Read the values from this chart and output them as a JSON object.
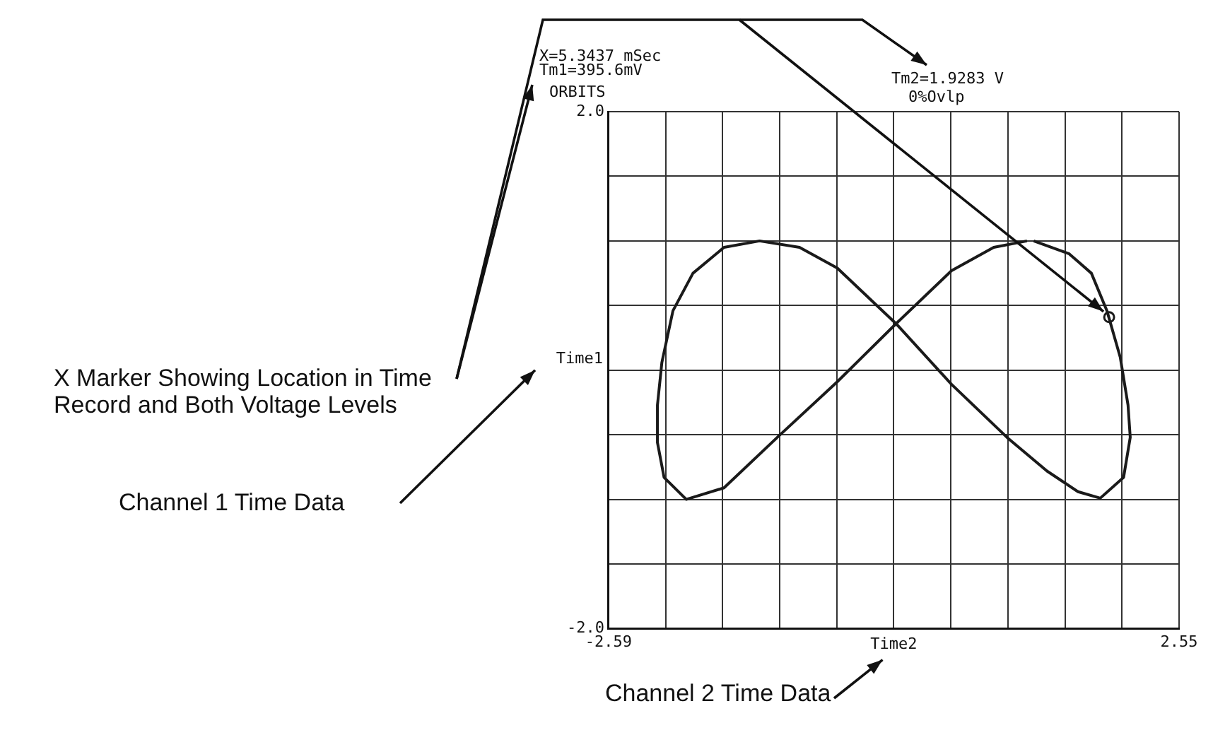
{
  "chart_data": {
    "type": "line",
    "title": "ORBITS",
    "xlabel": "Time2",
    "ylabel": "Time1",
    "xlim": [
      -2.59,
      2.55
    ],
    "ylim": [
      -2,
      2
    ],
    "xticks": [
      -2.59,
      {
        "value": -2.076,
        "label": null
      },
      {
        "value": -1.562,
        "label": null
      },
      {
        "value": -1.048,
        "label": null
      },
      {
        "value": -0.534,
        "label": null
      },
      {
        "value": -0.02,
        "label": null
      },
      {
        "value": 0.494,
        "label": null
      },
      {
        "value": 1.008,
        "label": null
      },
      {
        "value": 1.522,
        "label": null
      },
      {
        "value": 2.036,
        "label": null
      },
      2.55
    ],
    "yticks": [
      {
        "value": -2,
        "label": "-2.0"
      },
      {
        "value": -1.5,
        "label": null
      },
      {
        "value": -1,
        "label": null
      },
      {
        "value": -0.5,
        "label": null
      },
      {
        "value": 0,
        "label": null
      },
      {
        "value": 0.5,
        "label": null
      },
      {
        "value": 1,
        "label": null
      },
      {
        "value": 1.5,
        "label": null
      },
      {
        "value": 2,
        "label": "2.0"
      }
    ],
    "grid": true,
    "marker": "none",
    "line_style": "solid",
    "annotations": [
      "X=5.3437 mSec",
      "Tm1=395.6mV",
      "Tm2=1.9283 V",
      "0%Ovlp",
      "X Marker Showing Location in Time Record and Both Voltage Levels",
      "Channel 1 Time Data",
      "Channel 2 Time Data"
    ],
    "series": [
      {
        "color": "#1a1a1a",
        "x": [
          1.24,
          1.56,
          1.76,
          1.9,
          2.02,
          2.09,
          2.11,
          2.05,
          1.84,
          1.64,
          1.36,
          1.0,
          0.5,
          0.0,
          -0.53,
          -0.87,
          -1.23,
          -1.55,
          -1.83,
          -2.01,
          -2.11,
          -2.15,
          -2.15,
          -2.09,
          -1.89,
          -1.55,
          -1.07,
          -0.53,
          0.0,
          0.5,
          0.88,
          1.18
        ],
        "values": [
          1.0,
          0.9,
          0.75,
          0.46,
          0.1,
          -0.27,
          -0.52,
          -0.83,
          -0.99,
          -0.94,
          -0.78,
          -0.52,
          -0.11,
          0.36,
          0.79,
          0.95,
          1.0,
          0.95,
          0.75,
          0.46,
          0.06,
          -0.27,
          -0.56,
          -0.83,
          -1.0,
          -0.91,
          -0.52,
          -0.09,
          0.36,
          0.77,
          0.95,
          1.0
        ]
      },
      {
        "type": "scatter",
        "marker": "circle",
        "color": "#1a1a1a",
        "x": [
          1.92
        ],
        "values": [
          0.41
        ]
      }
    ]
  }
}
